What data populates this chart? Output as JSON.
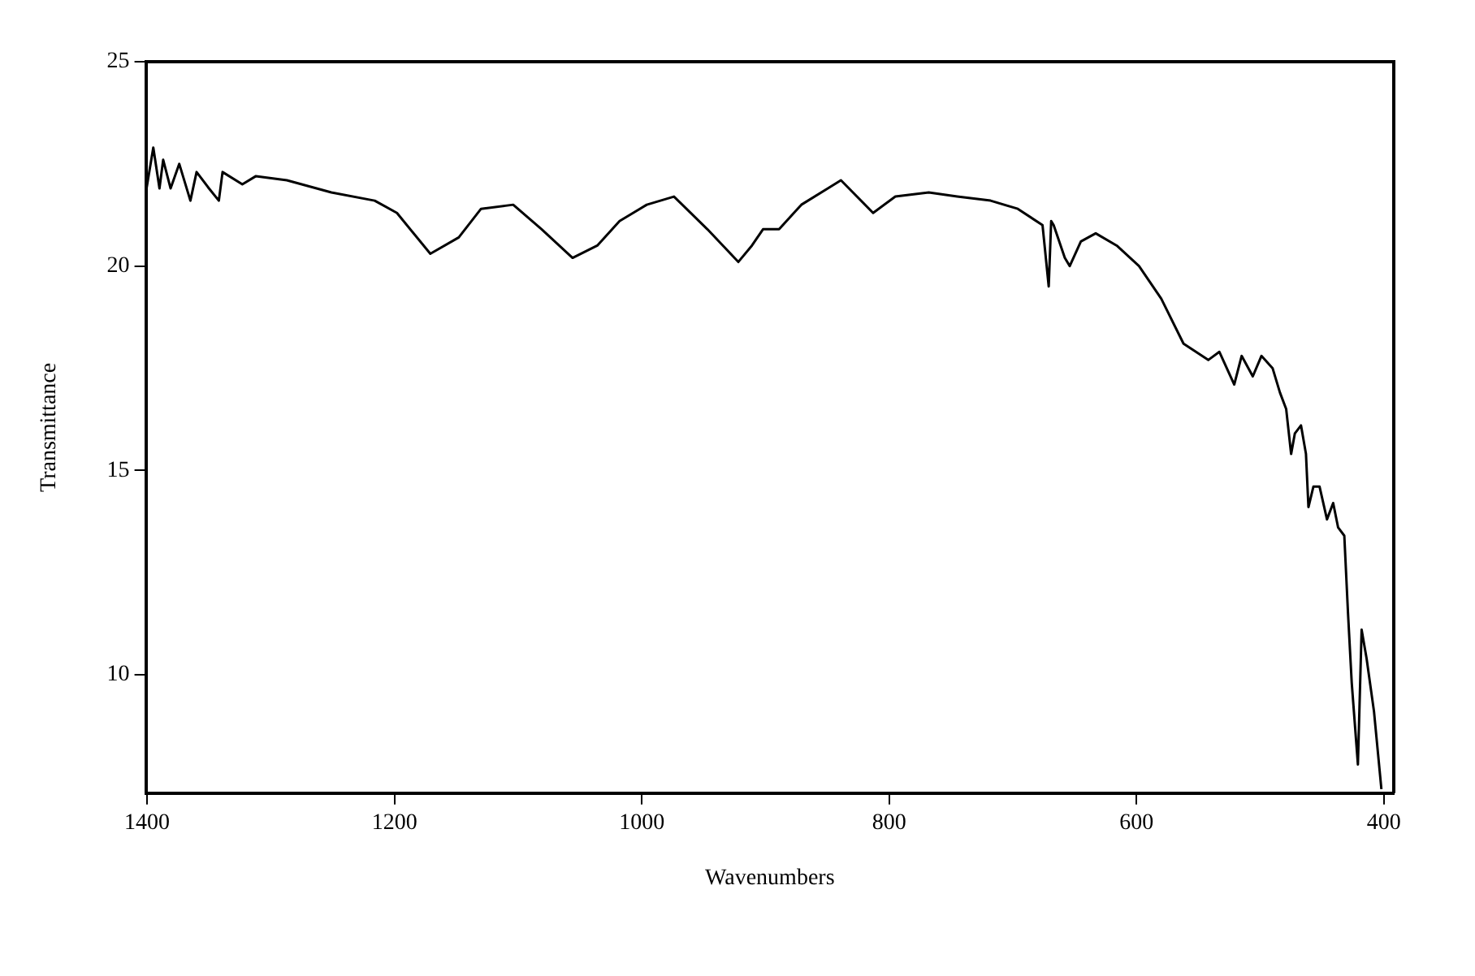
{
  "chart_data": {
    "type": "line",
    "xlabel": "Wavenumbers",
    "ylabel": "Transmittance",
    "xlim": [
      1401,
      392
    ],
    "ylim": [
      7.1,
      25
    ],
    "xticks": [
      1400,
      1200,
      1000,
      800,
      600,
      400
    ],
    "yticks": [
      10,
      15,
      20,
      25
    ],
    "grid": false,
    "legend": false,
    "marker": "none",
    "line_style": "solid",
    "series": [
      {
        "color": "#000000",
        "x": [
          1401,
          1395,
          1390,
          1387,
          1381,
          1374,
          1365,
          1360,
          1350,
          1342,
          1339,
          1323,
          1312,
          1287,
          1251,
          1216,
          1198,
          1171,
          1148,
          1130,
          1104,
          1081,
          1056,
          1036,
          1018,
          996,
          974,
          947,
          922,
          911,
          902,
          889,
          871,
          839,
          813,
          795,
          768,
          745,
          718,
          696,
          676,
          674,
          671,
          669,
          667,
          658,
          654,
          645,
          633,
          616,
          598,
          580,
          562,
          542,
          533,
          521,
          515,
          506,
          499,
          490,
          484,
          479,
          475,
          472,
          467,
          463,
          461,
          457,
          452,
          446,
          441,
          437,
          432,
          429,
          426,
          421,
          418,
          414,
          408,
          402
        ],
        "values": [
          21.8,
          22.9,
          21.9,
          22.6,
          21.9,
          22.5,
          21.6,
          22.3,
          21.9,
          21.6,
          22.3,
          22.0,
          22.2,
          22.1,
          21.8,
          21.6,
          21.3,
          20.3,
          20.7,
          21.4,
          21.5,
          20.9,
          20.2,
          20.5,
          21.1,
          21.5,
          21.7,
          20.9,
          20.1,
          20.5,
          20.9,
          20.9,
          21.5,
          22.1,
          21.3,
          21.7,
          21.8,
          21.7,
          21.6,
          21.4,
          21.0,
          20.4,
          19.5,
          21.1,
          21.0,
          20.2,
          20.0,
          20.6,
          20.8,
          20.5,
          20.0,
          19.2,
          18.1,
          17.7,
          17.9,
          17.1,
          17.8,
          17.3,
          17.8,
          17.5,
          16.9,
          16.5,
          15.4,
          15.9,
          16.1,
          15.4,
          14.1,
          14.6,
          14.6,
          13.8,
          14.2,
          13.6,
          13.4,
          11.5,
          9.8,
          7.8,
          11.1,
          10.4,
          9.1,
          7.2
        ]
      }
    ]
  }
}
